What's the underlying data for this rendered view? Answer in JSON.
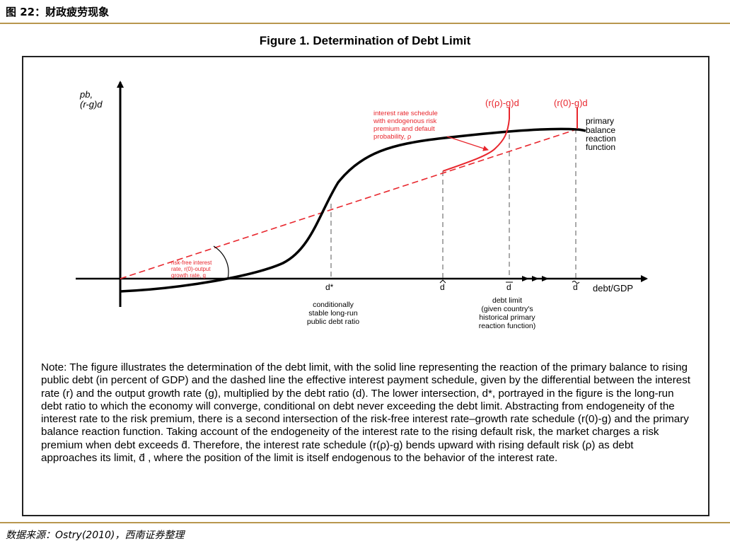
{
  "header": {
    "figure_no": "图 22：财政疲劳现象"
  },
  "figure": {
    "title": "Figure 1. Determination of Debt Limit"
  },
  "diagram": {
    "y_axis_label_1": "pb,",
    "y_axis_label_2": "(r-g)d",
    "x_axis_label": "debt/GDP",
    "curve_label_rho": "(r(ρ)-g)d",
    "curve_label_zero": "(r(0)-g)d",
    "pb_label": [
      "primary",
      "balance",
      "reaction",
      "function"
    ],
    "interest_annotation": [
      "interest rate schedule",
      "with endogenous risk",
      "premium and default",
      "probability, ρ"
    ],
    "riskfree_annotation": [
      "risk-free interest",
      "rate, r(0)-output",
      "growth rate, g"
    ],
    "tick_dstar": "d*",
    "tick_dhat": "d",
    "tick_dbar": "d",
    "tick_dtilde": "d",
    "dstar_caption": [
      "conditionally",
      "stable long-run",
      "public debt ratio"
    ],
    "dbar_caption": [
      "debt limit",
      "(given country's",
      "historical primary",
      "reaction function)"
    ]
  },
  "note": {
    "text": "Note: The figure illustrates the determination of the debt limit, with the solid line representing the reaction of the primary balance to rising public debt (in percent of GDP) and the dashed line the effective interest payment schedule, given by the differential between the interest rate (r) and the output growth rate (g), multiplied by the debt ratio (d). The lower intersection, d*, portrayed in the figure is the long-run debt ratio to which the economy will converge, conditional on debt never exceeding the debt limit. Abstracting from endogeneity of the interest rate to the risk premium, there is a second intersection of the risk-free interest rate–growth rate schedule (r(0)-g) and the primary balance reaction function. Taking account of the endogeneity of the interest rate to the rising default risk, the market charges a risk premium when debt exceeds d̂. Therefore, the interest rate schedule (r(ρ)-g) bends upward with rising default risk (ρ) as debt approaches its limit, d̄ , where the position of the limit is itself endogenous to the behavior of the interest rate."
  },
  "source": {
    "text": "数据来源：Ostry(2010)，西南证券整理"
  },
  "colors": {
    "accent_red": "#e8262d",
    "rule_gold": "#b8974e"
  }
}
